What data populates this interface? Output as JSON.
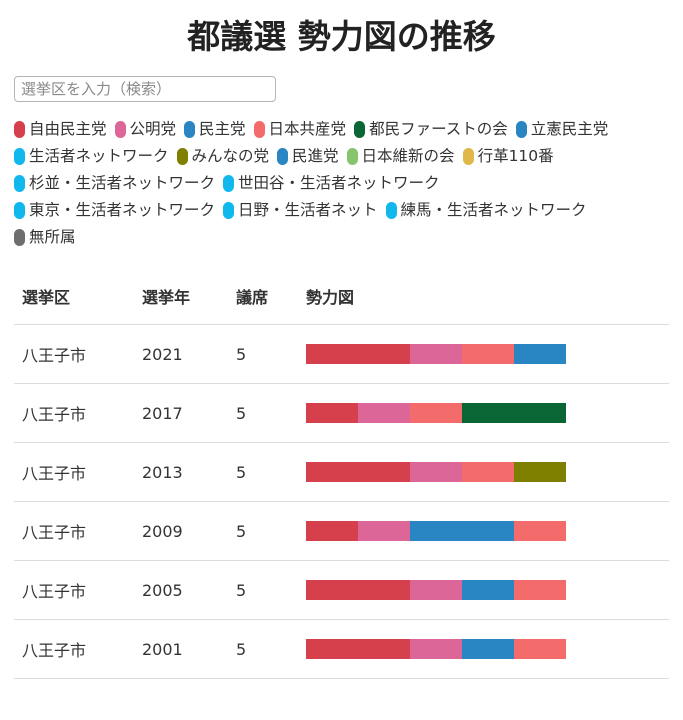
{
  "title": "都議選 勢力図の推移",
  "search": {
    "placeholder": "選挙区を入力（検索）",
    "value": ""
  },
  "parties": [
    {
      "name": "自由民主党",
      "color": "#d6404c"
    },
    {
      "name": "公明党",
      "color": "#dd6699"
    },
    {
      "name": "民主党",
      "color": "#2a86c2"
    },
    {
      "name": "日本共産党",
      "color": "#f36b6b"
    },
    {
      "name": "都民ファーストの会",
      "color": "#0a6634"
    },
    {
      "name": "立憲民主党",
      "color": "#2a86c2"
    },
    {
      "name": "生活者ネットワーク",
      "color": "#11b8ee"
    },
    {
      "name": "みんなの党",
      "color": "#7f7f00"
    },
    {
      "name": "民進党",
      "color": "#2a86c2"
    },
    {
      "name": "日本維新の会",
      "color": "#86c46e"
    },
    {
      "name": "行革110番",
      "color": "#e0b84a"
    },
    {
      "name": "杉並・生活者ネットワーク",
      "color": "#11b8ee"
    },
    {
      "name": "世田谷・生活者ネットワーク",
      "color": "#11b8ee"
    },
    {
      "name": "東京・生活者ネットワーク",
      "color": "#11b8ee"
    },
    {
      "name": "日野・生活者ネット",
      "color": "#11b8ee"
    },
    {
      "name": "練馬・生活者ネットワーク",
      "color": "#11b8ee"
    },
    {
      "name": "無所属",
      "color": "#6e6e6e"
    }
  ],
  "table": {
    "headers": {
      "district": "選挙区",
      "year": "選挙年",
      "seats": "議席",
      "power": "勢力図"
    },
    "rows": [
      {
        "district": "八王子市",
        "year": "2021",
        "seats": "5",
        "segments": [
          {
            "party": "自由民主党",
            "seats": 2
          },
          {
            "party": "公明党",
            "seats": 1
          },
          {
            "party": "日本共産党",
            "seats": 1
          },
          {
            "party": "立憲民主党",
            "seats": 1
          }
        ]
      },
      {
        "district": "八王子市",
        "year": "2017",
        "seats": "5",
        "segments": [
          {
            "party": "自由民主党",
            "seats": 1
          },
          {
            "party": "公明党",
            "seats": 1
          },
          {
            "party": "日本共産党",
            "seats": 1
          },
          {
            "party": "都民ファーストの会",
            "seats": 2
          }
        ]
      },
      {
        "district": "八王子市",
        "year": "2013",
        "seats": "5",
        "segments": [
          {
            "party": "自由民主党",
            "seats": 2
          },
          {
            "party": "公明党",
            "seats": 1
          },
          {
            "party": "日本共産党",
            "seats": 1
          },
          {
            "party": "みんなの党",
            "seats": 1
          }
        ]
      },
      {
        "district": "八王子市",
        "year": "2009",
        "seats": "5",
        "segments": [
          {
            "party": "自由民主党",
            "seats": 1
          },
          {
            "party": "公明党",
            "seats": 1
          },
          {
            "party": "民主党",
            "seats": 2
          },
          {
            "party": "日本共産党",
            "seats": 1
          }
        ]
      },
      {
        "district": "八王子市",
        "year": "2005",
        "seats": "5",
        "segments": [
          {
            "party": "自由民主党",
            "seats": 2
          },
          {
            "party": "公明党",
            "seats": 1
          },
          {
            "party": "民主党",
            "seats": 1
          },
          {
            "party": "日本共産党",
            "seats": 1
          }
        ]
      },
      {
        "district": "八王子市",
        "year": "2001",
        "seats": "5",
        "segments": [
          {
            "party": "自由民主党",
            "seats": 2
          },
          {
            "party": "公明党",
            "seats": 1
          },
          {
            "party": "民主党",
            "seats": 1
          },
          {
            "party": "日本共産党",
            "seats": 1
          }
        ]
      }
    ]
  }
}
